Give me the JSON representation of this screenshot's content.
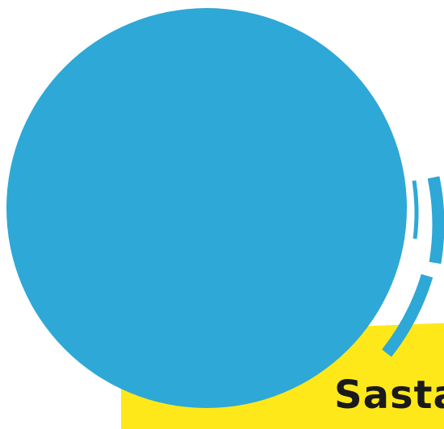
{
  "colors": {
    "background": "#ffffff",
    "circle": "#2ea8d6",
    "banner": "#ffe81a",
    "banner_text": "#1a1a1a"
  },
  "banner": {
    "text": "Sasta"
  }
}
